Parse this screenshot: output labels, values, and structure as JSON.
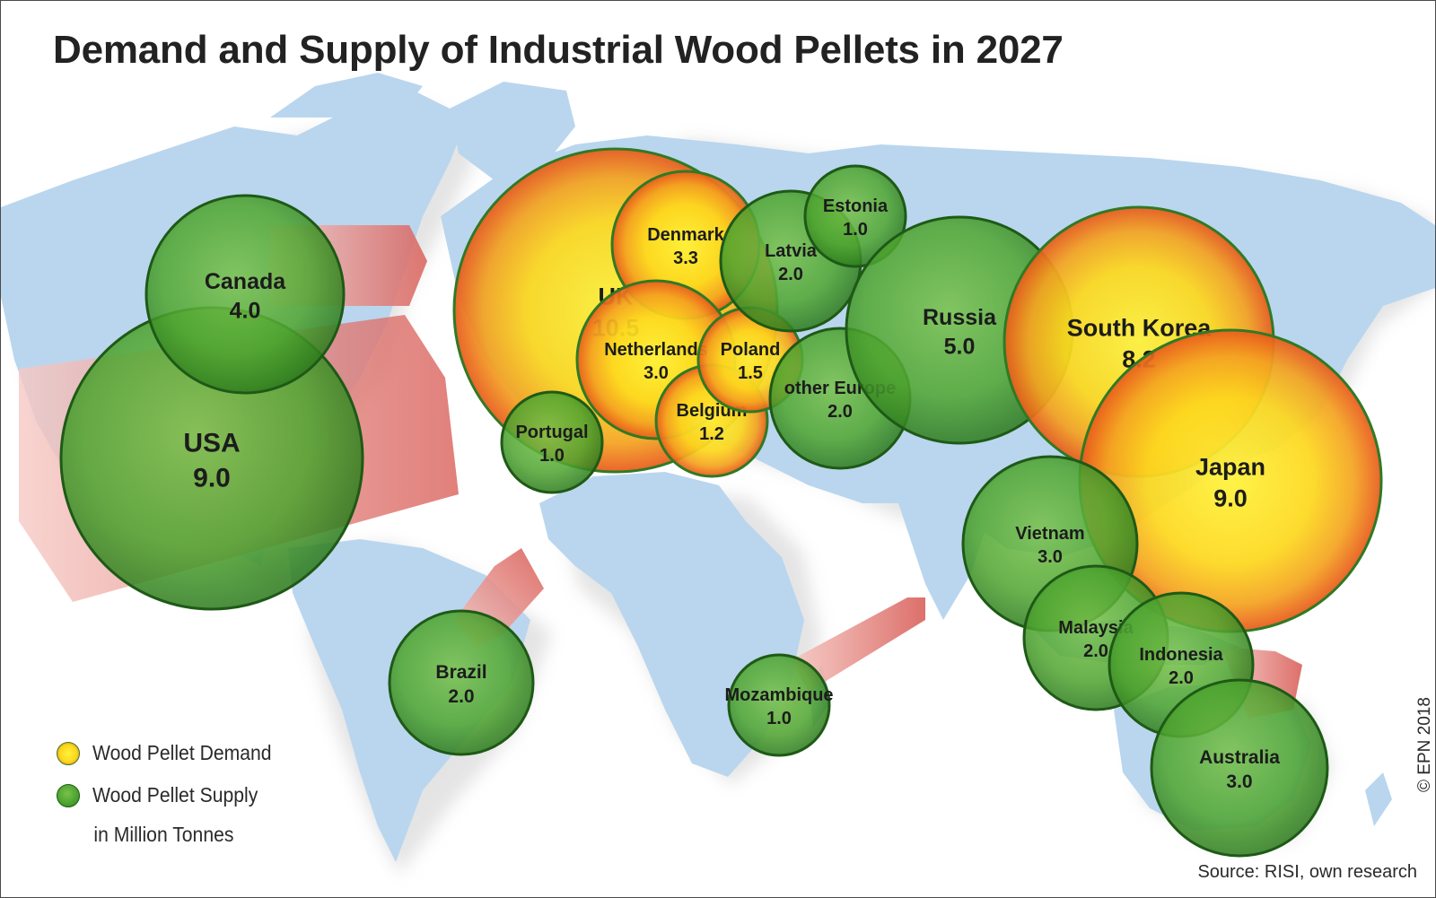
{
  "title": "Demand and Supply of Industrial Wood Pellets in 2027",
  "unit": "in Million Tonnes",
  "legend": [
    {
      "label": "Wood Pellet Demand",
      "type": "demand"
    },
    {
      "label": "Wood Pellet Supply",
      "type": "supply"
    }
  ],
  "colors": {
    "demand_center": "#fff23a",
    "demand_edge": "#e85a1c",
    "supply_center": "#6fbb44",
    "supply_edge": "#2e7c1e",
    "supply_outline": "#1e5a16",
    "land": "#b9d6ee",
    "flow_arrow": "#d9605a"
  },
  "copyright": "© EPN 2018",
  "source": "Source: RISI, own research",
  "regions": [
    {
      "name": "UK",
      "value": "10.5",
      "type": "demand"
    },
    {
      "name": "South Korea",
      "value": "8.2",
      "type": "demand"
    },
    {
      "name": "Japan",
      "value": "9.0",
      "type": "demand"
    },
    {
      "name": "Denmark",
      "value": "3.3",
      "type": "demand"
    },
    {
      "name": "Netherlands",
      "value": "3.0",
      "type": "demand"
    },
    {
      "name": "Belgium",
      "value": "1.2",
      "type": "demand"
    },
    {
      "name": "Poland",
      "value": "1.5",
      "type": "demand"
    },
    {
      "name": "USA",
      "value": "9.0",
      "type": "supply"
    },
    {
      "name": "Canada",
      "value": "4.0",
      "type": "supply"
    },
    {
      "name": "Russia",
      "value": "5.0",
      "type": "supply"
    },
    {
      "name": "Latvia",
      "value": "2.0",
      "type": "supply"
    },
    {
      "name": "Estonia",
      "value": "1.0",
      "type": "supply"
    },
    {
      "name": "other Europe",
      "value": "2.0",
      "type": "supply"
    },
    {
      "name": "Portugal",
      "value": "1.0",
      "type": "supply"
    },
    {
      "name": "Brazil",
      "value": "2.0",
      "type": "supply"
    },
    {
      "name": "Mozambique",
      "value": "1.0",
      "type": "supply"
    },
    {
      "name": "Vietnam",
      "value": "3.0",
      "type": "supply"
    },
    {
      "name": "Malaysia",
      "value": "2.0",
      "type": "supply"
    },
    {
      "name": "Indonesia",
      "value": "2.0",
      "type": "supply"
    },
    {
      "name": "Australia",
      "value": "3.0",
      "type": "supply"
    }
  ]
}
